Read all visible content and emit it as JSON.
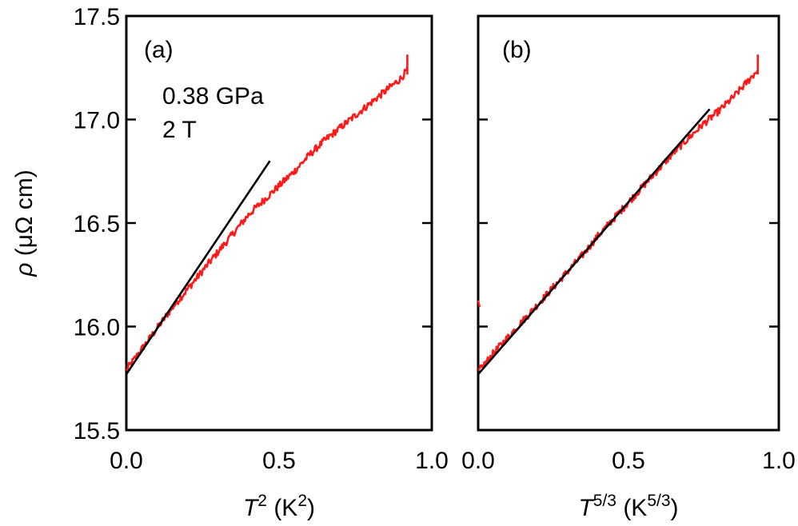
{
  "chart_data": [
    {
      "type": "line",
      "panel_label": "(a)",
      "annotations": [
        "0.38 GPa",
        "2 T"
      ],
      "xlabel": {
        "symbol": "T",
        "sup": "2",
        "rest_pre": " (K",
        "rest_sup": "2",
        "rest_post": ")"
      },
      "ylabel": {
        "symbol": "ρ",
        "rest": " (μΩ cm)"
      },
      "xlim": [
        0.0,
        1.0
      ],
      "ylim": [
        15.5,
        17.5
      ],
      "x_ticks": [
        "0.0",
        "0.5",
        "1.0"
      ],
      "y_ticks": [
        "15.5",
        "16.0",
        "16.5",
        "17.0",
        "17.5"
      ],
      "series": [
        {
          "name": "data",
          "color": "#ff1a1a",
          "x": [
            0.0,
            0.05,
            0.1,
            0.15,
            0.2,
            0.25,
            0.3,
            0.35,
            0.4,
            0.45,
            0.5,
            0.55,
            0.6,
            0.65,
            0.7,
            0.75,
            0.8,
            0.85,
            0.9,
            0.92
          ],
          "y": [
            15.79,
            15.89,
            15.99,
            16.09,
            16.18,
            16.27,
            16.36,
            16.45,
            16.54,
            16.61,
            16.68,
            16.75,
            16.83,
            16.9,
            16.96,
            17.02,
            17.08,
            17.14,
            17.2,
            17.24
          ]
        },
        {
          "name": "fit",
          "color": "#000000",
          "x": [
            0.0,
            0.47
          ],
          "y": [
            15.77,
            16.8
          ]
        }
      ]
    },
    {
      "type": "line",
      "panel_label": "(b)",
      "xlabel": {
        "symbol": "T",
        "sup": "5/3",
        "rest_pre": " (K",
        "rest_sup": "5/3",
        "rest_post": ")"
      },
      "xlim": [
        0.0,
        1.0
      ],
      "ylim": [
        15.5,
        17.5
      ],
      "x_ticks": [
        "0.0",
        "0.5",
        "1.0"
      ],
      "series": [
        {
          "name": "data",
          "color": "#ff1a1a",
          "x": [
            0.0,
            0.05,
            0.1,
            0.15,
            0.2,
            0.25,
            0.3,
            0.35,
            0.4,
            0.45,
            0.5,
            0.55,
            0.6,
            0.65,
            0.7,
            0.75,
            0.8,
            0.85,
            0.9,
            0.93
          ],
          "y": [
            15.78,
            15.87,
            15.95,
            16.03,
            16.11,
            16.19,
            16.27,
            16.35,
            16.44,
            16.52,
            16.6,
            16.68,
            16.76,
            16.84,
            16.91,
            16.98,
            17.04,
            17.11,
            17.19,
            17.24
          ]
        },
        {
          "name": "fit",
          "color": "#000000",
          "x": [
            0.0,
            0.77
          ],
          "y": [
            15.77,
            17.05
          ]
        }
      ]
    }
  ]
}
